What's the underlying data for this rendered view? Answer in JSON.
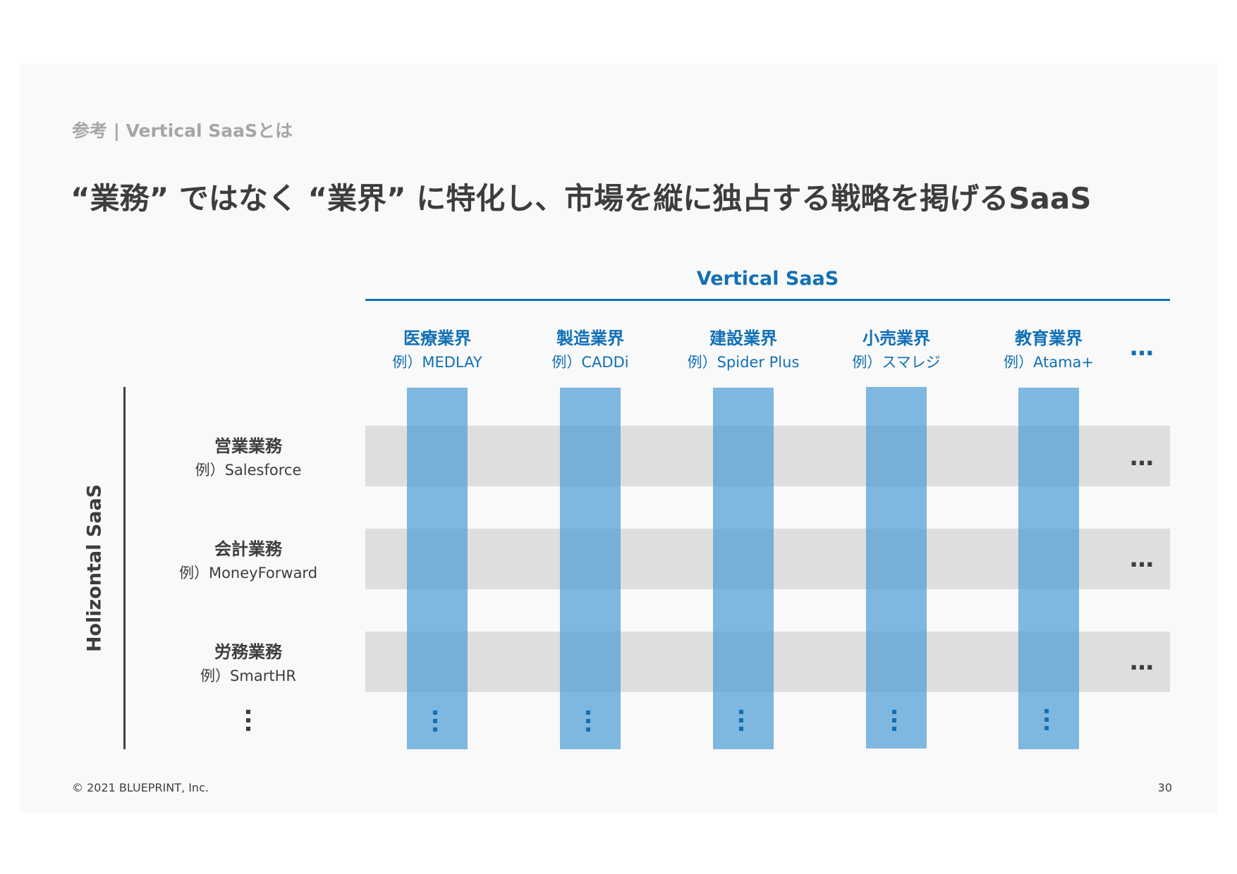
{
  "header": {
    "breadcrumb": "参考 | Vertical SaaSとは",
    "title": "“業務” ではなく “業界” に特化し、市場を縦に独占する戦略を掲げるSaaS"
  },
  "diagram": {
    "vertical_label": "Vertical SaaS",
    "horizontal_label": "Holizontal SaaS",
    "columns": [
      {
        "name": "医療業界",
        "example": "例）MEDLAY"
      },
      {
        "name": "製造業界",
        "example": "例）CADDi"
      },
      {
        "name": "建設業界",
        "example": "例）Spider Plus"
      },
      {
        "name": "小売業界",
        "example": "例）スマレジ"
      },
      {
        "name": "教育業界",
        "example": "例）Atama+"
      }
    ],
    "rows": [
      {
        "name": "営業業務",
        "example": "例）Salesforce"
      },
      {
        "name": "会計業務",
        "example": "例）MoneyForward"
      },
      {
        "name": "労務業務",
        "example": "例）SmartHR"
      }
    ],
    "ellipsis": "…"
  },
  "colors": {
    "accent": "#1170b6",
    "text": "#3d3d3d",
    "band": "#dedede",
    "bar": "#4a9bd5"
  },
  "footer": {
    "copyright": "© 2021 BLUEPRINT, Inc.",
    "page_number": "30"
  }
}
